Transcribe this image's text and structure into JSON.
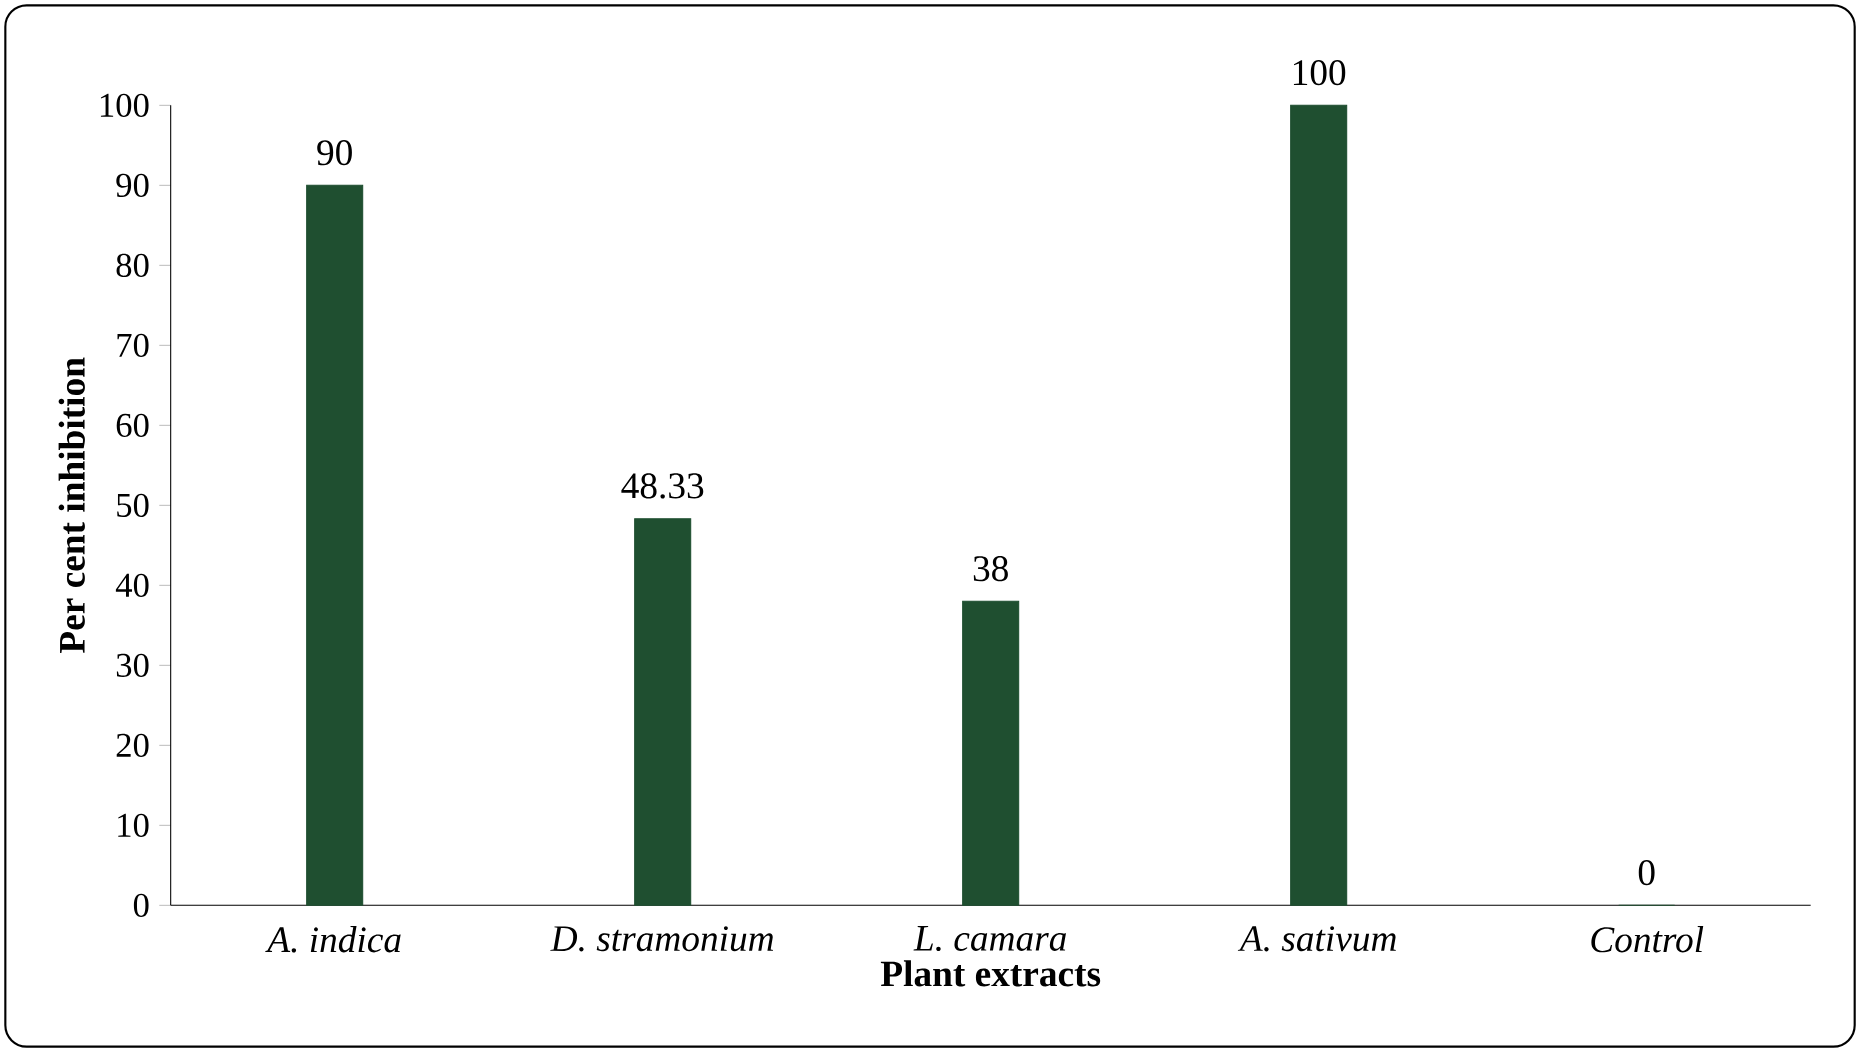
{
  "chart_data": {
    "type": "bar",
    "xlabel": "Plant extracts",
    "ylabel": "Per cent inhibition",
    "categories": [
      "A. indica",
      "D. stramonium",
      "L. camara",
      "A. sativum",
      "Control"
    ],
    "values": [
      90,
      48.33,
      38,
      100,
      0
    ],
    "color": "#1f4f30",
    "ylim": [
      0,
      100
    ],
    "yticks": [
      0,
      10,
      20,
      30,
      40,
      50,
      60,
      70,
      80,
      90,
      100
    ],
    "data_labels": true
  }
}
